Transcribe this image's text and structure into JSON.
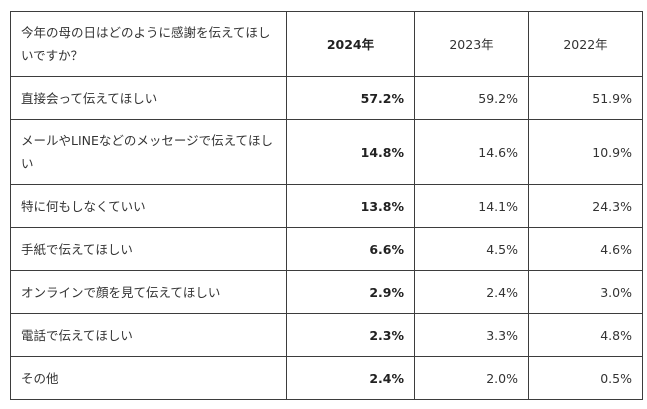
{
  "chart_data": {
    "type": "table",
    "question": "今年の母の日はどのように感謝を伝えてほしいですか？",
    "columns": [
      "2024年",
      "2023年",
      "2022年"
    ],
    "rows": [
      {
        "label": "直接会って伝えてほしい",
        "values": [
          "57.2%",
          "59.2%",
          "51.9%"
        ]
      },
      {
        "label": "メールやLINEなどのメッセージで伝えてほしい",
        "values": [
          "14.8%",
          "14.6%",
          "10.9%"
        ]
      },
      {
        "label": "特に何もしなくていい",
        "values": [
          "13.8%",
          "14.1%",
          "24.3%"
        ]
      },
      {
        "label": "手紙で伝えてほしい",
        "values": [
          "6.6%",
          "4.5%",
          "4.6%"
        ]
      },
      {
        "label": "オンラインで顔を見て伝えてほしい",
        "values": [
          "2.9%",
          "2.4%",
          "3.0%"
        ]
      },
      {
        "label": "電話で伝えてほしい",
        "values": [
          "2.3%",
          "3.3%",
          "4.8%"
        ]
      },
      {
        "label": "その他",
        "values": [
          "2.4%",
          "2.0%",
          "0.5%"
        ]
      }
    ]
  },
  "colors": {
    "border": "#3d3d3d",
    "text": "#333333",
    "background": "#ffffff"
  }
}
